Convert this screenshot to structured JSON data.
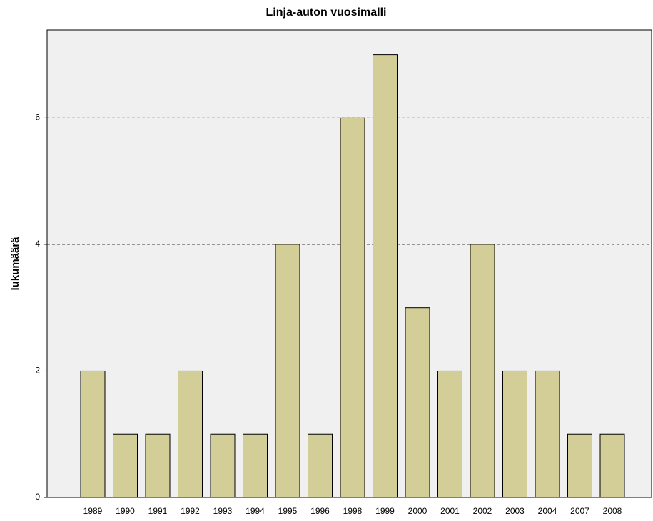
{
  "chart_data": {
    "type": "bar",
    "title": "Linja-auton vuosimalli",
    "y_label": "lukumäärä",
    "categories": [
      "1989",
      "1990",
      "1991",
      "1992",
      "1993",
      "1994",
      "1995",
      "1996",
      "1998",
      "1999",
      "2000",
      "2001",
      "2002",
      "2003",
      "2004",
      "2007",
      "2008"
    ],
    "values": [
      2,
      1,
      1,
      2,
      1,
      1,
      4,
      1,
      6,
      7,
      3,
      2,
      4,
      2,
      2,
      1,
      1
    ],
    "color": "#d3ce97",
    "ylim": [
      0,
      7.39
    ],
    "yticks": [
      0,
      2,
      4,
      6
    ],
    "grid": true
  }
}
